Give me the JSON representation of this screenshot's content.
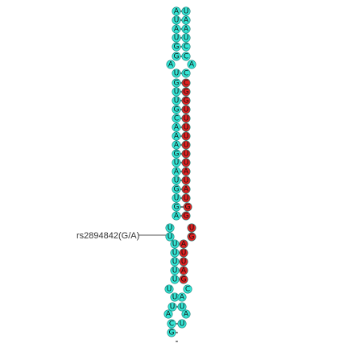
{
  "colors": {
    "background": "#ffffff",
    "mature_region": "#e02020",
    "precursor_region": "#33e5d5",
    "outline": "#1a7f78",
    "bond": "#222222",
    "snp_line": "#555555"
  },
  "snp_annotation": {
    "label": "rs2894842(G/A)"
  },
  "strand_5p": [
    "A",
    "U",
    "A",
    "U",
    "G",
    "G",
    "A",
    "U",
    "G",
    "U",
    "U",
    "G",
    "C",
    "A",
    "A",
    "A",
    "G",
    "U",
    "A",
    "U",
    "G",
    "U",
    "G",
    "A",
    "U",
    "U",
    "U",
    "U",
    "U",
    "U",
    "U",
    "U",
    "U",
    "U",
    "A",
    "C",
    "G"
  ],
  "strand_3p": [
    "U",
    "A",
    "A",
    "U",
    "C",
    "C",
    "A",
    "C",
    "C",
    "G",
    "G",
    "U",
    "U",
    "U",
    "U",
    "U",
    "U",
    "U",
    "A",
    "U",
    "A",
    "U",
    "G",
    "G",
    "U",
    "G",
    "A",
    "U",
    "U",
    "A",
    "G",
    "C",
    "A",
    "U",
    "A",
    "U"
  ],
  "base_colors_5p": [
    "c",
    "c",
    "c",
    "c",
    "c",
    "c",
    "c",
    "c",
    "c",
    "c",
    "c",
    "c",
    "c",
    "c",
    "c",
    "c",
    "c",
    "c",
    "c",
    "c",
    "c",
    "c",
    "c",
    "c",
    "c",
    "c",
    "c",
    "c",
    "c",
    "c",
    "c",
    "c",
    "c",
    "c",
    "c",
    "c",
    "c"
  ],
  "base_colors_3p": [
    "c",
    "c",
    "c",
    "c",
    "c",
    "c",
    "c",
    "c",
    "r",
    "r",
    "r",
    "r",
    "r",
    "r",
    "r",
    "r",
    "r",
    "r",
    "r",
    "r",
    "r",
    "r",
    "r",
    "r",
    "r",
    "r",
    "r",
    "r",
    "r",
    "r",
    "r",
    "c",
    "c",
    "c",
    "c",
    "c"
  ]
}
